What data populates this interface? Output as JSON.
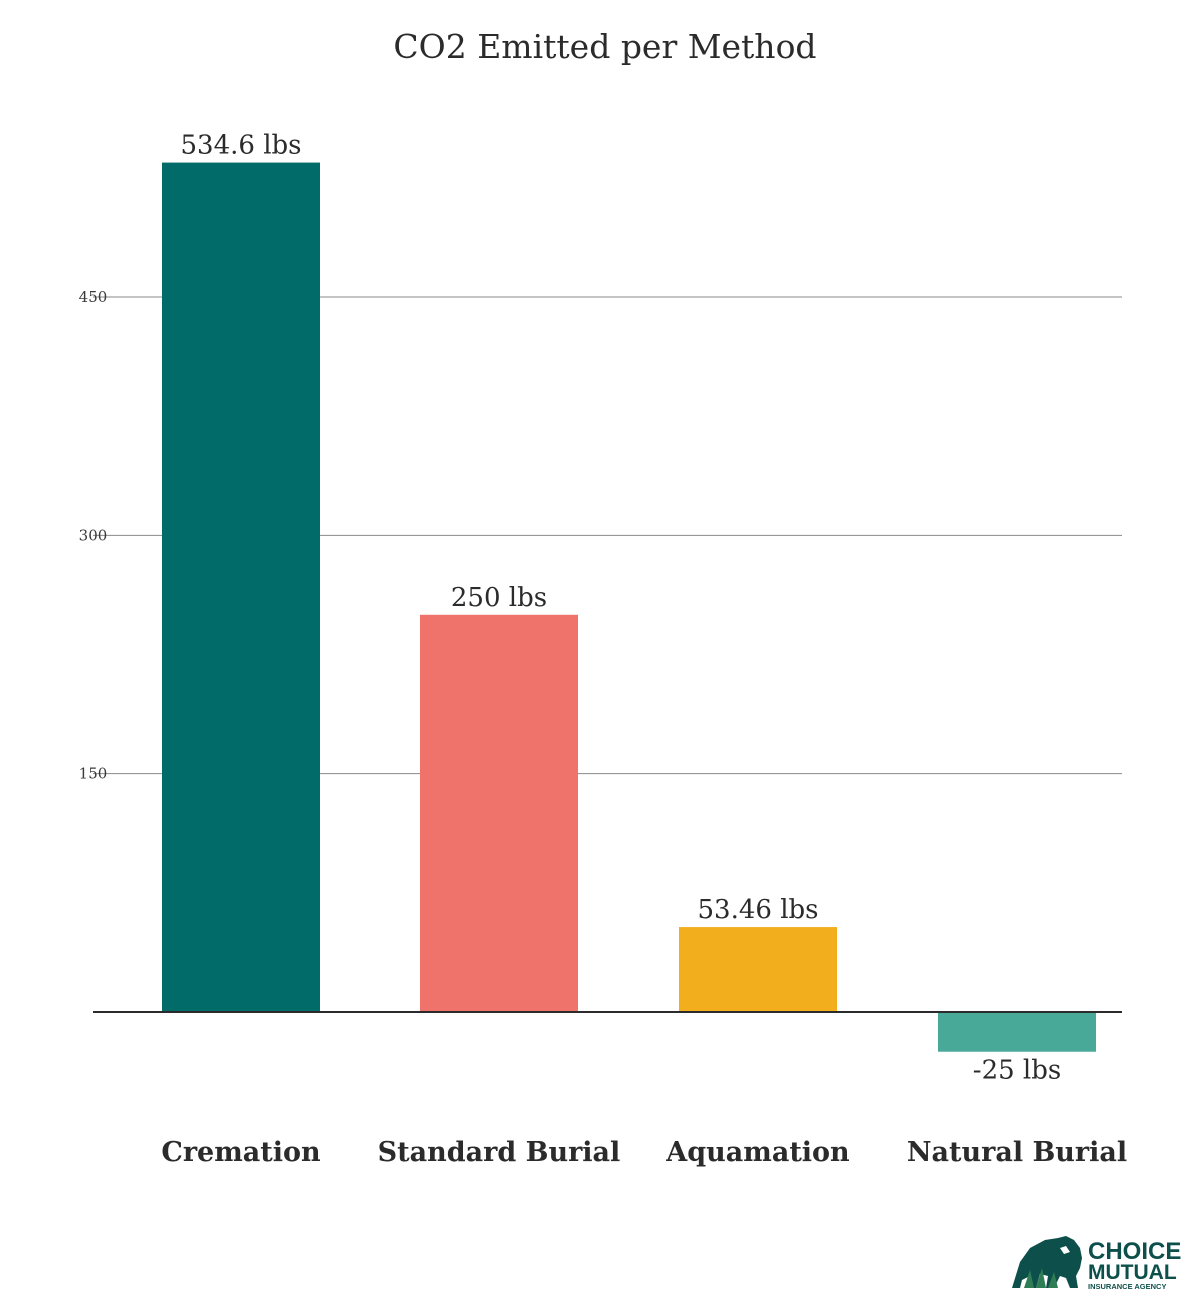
{
  "chart_data": {
    "type": "bar",
    "title": "CO2 Emitted per Method",
    "categories": [
      "Cremation",
      "Standard Burial",
      "Aquamation",
      "Natural Burial"
    ],
    "values": [
      534.6,
      250,
      53.46,
      -25
    ],
    "data_labels": [
      "534.6 lbs",
      "250 lbs",
      "53.46 lbs",
      "-25 lbs"
    ],
    "colors": [
      "#006b68",
      "#f0736b",
      "#f2ae1d",
      "#48a999"
    ],
    "yticks": [
      150,
      300,
      450
    ],
    "ylim": [
      -50,
      600
    ],
    "grid": true,
    "xlabel": "",
    "ylabel": ""
  },
  "logo": {
    "line1": "CHOICE",
    "line2": "MUTUAL",
    "line3": "INSURANCE AGENCY",
    "color": "#0d4f4a"
  }
}
